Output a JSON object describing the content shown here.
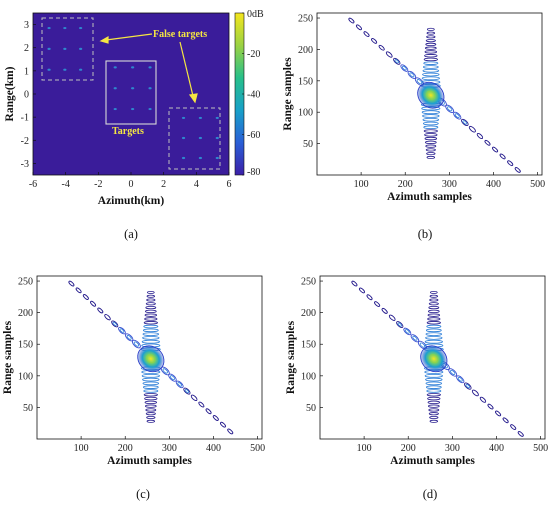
{
  "colors": {
    "map_background": "#3a1c9a",
    "colorbar": [
      "#3b1fa8",
      "#2a5fd6",
      "#18a0c8",
      "#27c08a",
      "#9bd243",
      "#f4e61e"
    ],
    "annotation": "#f5e642",
    "contour_dark": "#241a8c",
    "contour_mid": "#3a4fd0",
    "contour_hot": "#f4e61e"
  },
  "chart_data": [
    {
      "panel": "a",
      "type": "heatmap",
      "caption": "(a)",
      "xlabel": "Azimuth(km)",
      "ylabel": "Range(km)",
      "xlim": [
        -6,
        6
      ],
      "ylim": [
        -3.5,
        3.5
      ],
      "xticks": [
        "-6",
        "-4",
        "-2",
        "0",
        "2",
        "4",
        "6"
      ],
      "yticks": [
        "3",
        "2",
        "1",
        "0",
        "-1",
        "-2",
        "-3"
      ],
      "colorbar": {
        "ticks": [
          "0dB",
          "-20",
          "-40",
          "-60",
          "-80"
        ],
        "range": [
          -80,
          0
        ]
      },
      "annotations": [
        "False targets",
        "Targets"
      ],
      "regions": [
        {
          "label": "False targets",
          "x": [
            -5.5,
            -2.6
          ],
          "y": [
            0.6,
            3.3
          ],
          "style": "dashed"
        },
        {
          "label": "Targets",
          "x": [
            -1.5,
            1.7
          ],
          "y": [
            -1.1,
            1.6
          ],
          "style": "solid"
        },
        {
          "label": "False targets",
          "x": [
            2.7,
            5.8
          ],
          "y": [
            -3.2,
            -0.6
          ],
          "style": "dashed"
        }
      ]
    },
    {
      "panel": "b",
      "type": "contour",
      "caption": "(b)",
      "xlabel": "Azimuth samples",
      "ylabel": "Range samples",
      "xlim": [
        0,
        510
      ],
      "ylim": [
        0,
        258
      ],
      "xticks": [
        "100",
        "200",
        "300",
        "400",
        "500"
      ],
      "yticks": [
        "50",
        "100",
        "150",
        "200",
        "250"
      ],
      "peak": {
        "x": 258,
        "y": 127
      },
      "diagonal": {
        "start": [
          78,
          246
        ],
        "end": [
          455,
          8
        ]
      },
      "vertical_streak": {
        "x": 258,
        "y": [
          28,
          232
        ]
      }
    },
    {
      "panel": "c",
      "type": "contour",
      "caption": "(c)",
      "xlabel": "Azimuth samples",
      "ylabel": "Range samples",
      "xlim": [
        0,
        510
      ],
      "ylim": [
        0,
        258
      ],
      "xticks": [
        "100",
        "200",
        "300",
        "400",
        "500"
      ],
      "yticks": [
        "50",
        "100",
        "150",
        "200",
        "250"
      ],
      "peak": {
        "x": 258,
        "y": 127
      },
      "diagonal": {
        "start": [
          78,
          246
        ],
        "end": [
          438,
          12
        ]
      },
      "vertical_streak": {
        "x": 258,
        "y": [
          28,
          232
        ]
      }
    },
    {
      "panel": "d",
      "type": "contour",
      "caption": "(d)",
      "xlabel": "Azimuth samples",
      "ylabel": "Range samples",
      "xlim": [
        0,
        510
      ],
      "ylim": [
        0,
        258
      ],
      "xticks": [
        "100",
        "200",
        "300",
        "400",
        "500"
      ],
      "yticks": [
        "50",
        "100",
        "150",
        "200",
        "250"
      ],
      "peak": {
        "x": 258,
        "y": 127
      },
      "diagonal": {
        "start": [
          78,
          246
        ],
        "end": [
          455,
          8
        ]
      },
      "vertical_streak": {
        "x": 258,
        "y": [
          28,
          232
        ]
      }
    }
  ]
}
